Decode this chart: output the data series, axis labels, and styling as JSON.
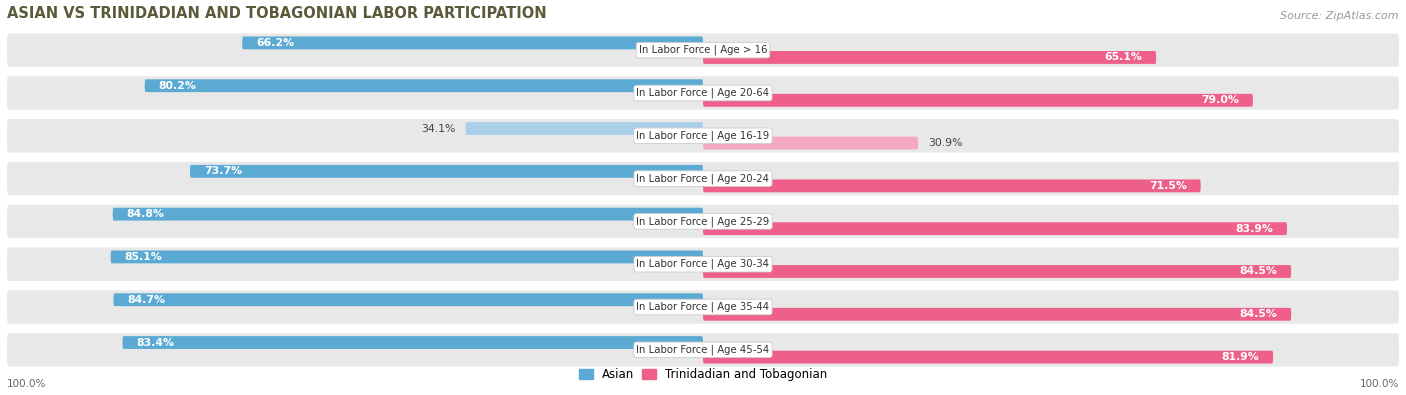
{
  "title": "ASIAN VS TRINIDADIAN AND TOBAGONIAN LABOR PARTICIPATION",
  "source": "Source: ZipAtlas.com",
  "categories": [
    "In Labor Force | Age > 16",
    "In Labor Force | Age 20-64",
    "In Labor Force | Age 16-19",
    "In Labor Force | Age 20-24",
    "In Labor Force | Age 25-29",
    "In Labor Force | Age 30-34",
    "In Labor Force | Age 35-44",
    "In Labor Force | Age 45-54"
  ],
  "asian_values": [
    66.2,
    80.2,
    34.1,
    73.7,
    84.8,
    85.1,
    84.7,
    83.4
  ],
  "trinidadian_values": [
    65.1,
    79.0,
    30.9,
    71.5,
    83.9,
    84.5,
    84.5,
    81.9
  ],
  "asian_color": "#5BAAD4",
  "asian_color_light": "#AACFE8",
  "trinidadian_color": "#EE5F8A",
  "trinidadian_color_light": "#F4A8C0",
  "max_value": 100.0,
  "row_bg_color": "#e8e8e8",
  "title_color": "#5a5a3a",
  "source_color": "#999999",
  "footer_label": "100.0%",
  "legend_asian": "Asian",
  "legend_trinidadian": "Trinidadian and Tobagonian"
}
